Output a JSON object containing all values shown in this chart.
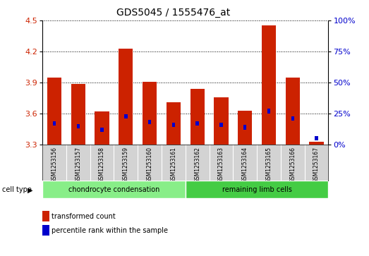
{
  "title": "GDS5045 / 1555476_at",
  "samples": [
    "GSM1253156",
    "GSM1253157",
    "GSM1253158",
    "GSM1253159",
    "GSM1253160",
    "GSM1253161",
    "GSM1253162",
    "GSM1253163",
    "GSM1253164",
    "GSM1253165",
    "GSM1253166",
    "GSM1253167"
  ],
  "transformed_count": [
    3.95,
    3.89,
    3.62,
    4.23,
    3.91,
    3.71,
    3.84,
    3.76,
    3.63,
    4.45,
    3.95,
    3.33
  ],
  "percentile_rank": [
    17,
    15,
    12,
    23,
    18,
    16,
    17,
    16,
    14,
    27,
    21,
    5
  ],
  "ylim_left": [
    3.3,
    4.5
  ],
  "yticks_left": [
    3.3,
    3.6,
    3.9,
    4.2,
    4.5
  ],
  "ylim_right": [
    0,
    100
  ],
  "yticks_right": [
    0,
    25,
    50,
    75,
    100
  ],
  "bar_color": "#cc2200",
  "pct_color": "#0000cc",
  "group1_label": "chondrocyte condensation",
  "group2_label": "remaining limb cells",
  "group1_color": "#88ee88",
  "group2_color": "#44cc44",
  "cell_type_label": "cell type",
  "legend_red": "transformed count",
  "legend_blue": "percentile rank within the sample",
  "bar_width": 0.6,
  "tick_label_fontsize": 7,
  "title_fontsize": 10,
  "bg_color": "#ffffff",
  "base_value": 3.3,
  "ylabel_left_color": "#cc2200",
  "ylabel_right_color": "#0000cc",
  "gray_bg": "#d3d3d3"
}
